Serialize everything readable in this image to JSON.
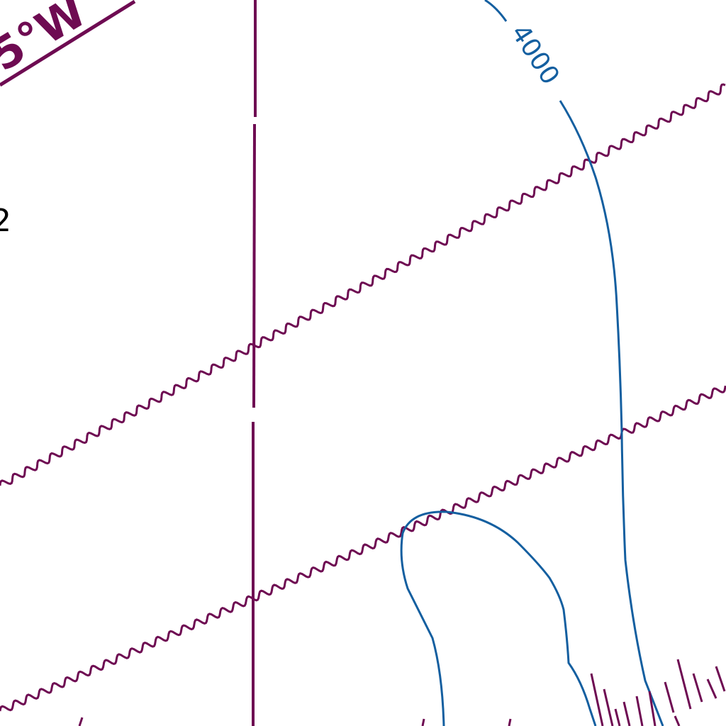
{
  "map": {
    "colors": {
      "background": "#ffffff",
      "boundary": "#6e0b52",
      "contour": "#145fa0",
      "text": "#000000"
    },
    "labels": {
      "meridian_label": "5°W",
      "contour_label": "4000",
      "partial_number": "2"
    },
    "contours": [
      {
        "name": "contour-4000",
        "depth_label": "4000"
      },
      {
        "name": "contour-inner",
        "depth_label": ""
      }
    ]
  }
}
